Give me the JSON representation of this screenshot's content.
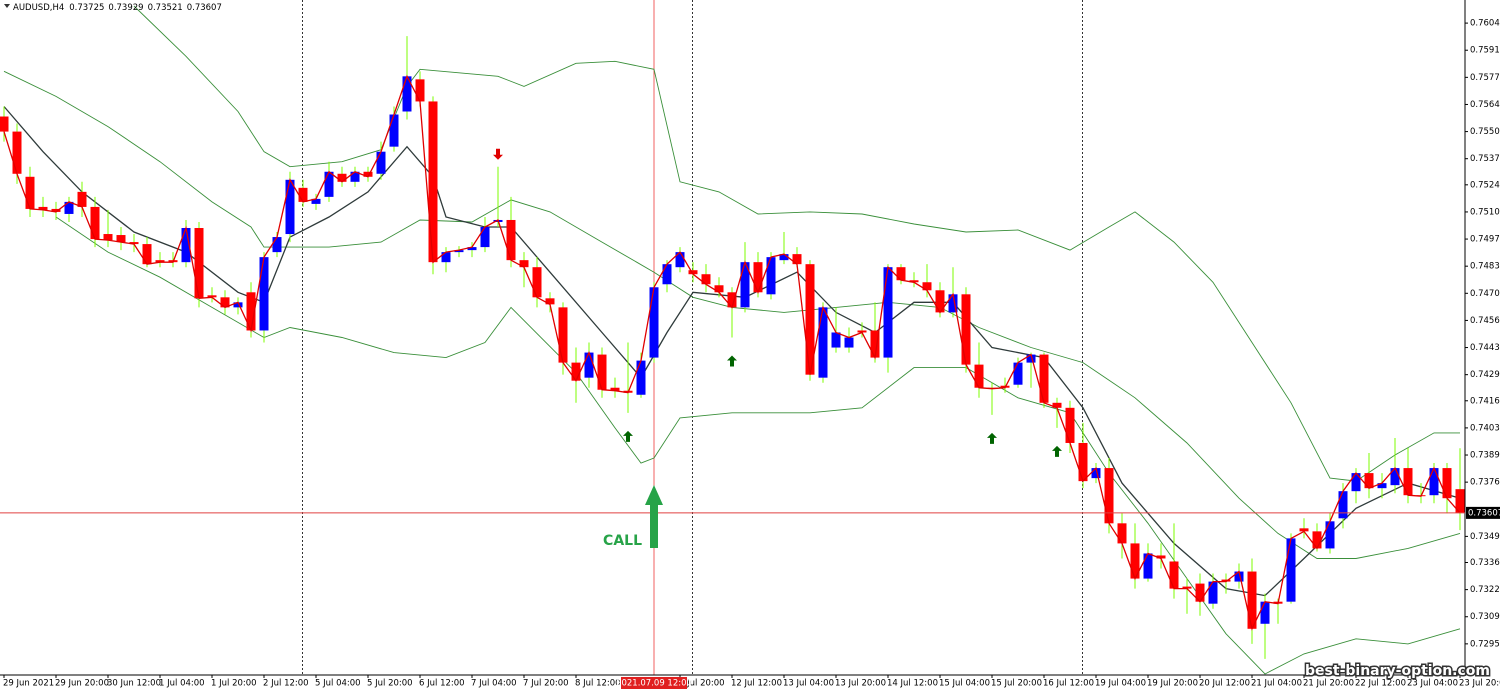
{
  "chart_data": {
    "type": "candlestick",
    "title": "AUDUSD,H4",
    "categories": [
      "29 Jun 2021",
      null,
      null,
      null,
      "29 Jun 20:00",
      null,
      null,
      null,
      "30 Jun 12:00",
      null,
      null,
      null,
      "1 Jul 04:00",
      null,
      null,
      null,
      "1 Jul 20:00",
      null,
      null,
      null,
      "2 Jul 12:00",
      null,
      null,
      null,
      "5 Jul 04:00",
      null,
      null,
      null,
      "5 Jul 20:00",
      null,
      null,
      null,
      "6 Jul 12:00",
      null,
      null,
      null,
      "7 Jul 04:00",
      null,
      null,
      null,
      "7 Jul 20:00",
      null,
      null,
      null,
      "8 Jul 12:00",
      null,
      null,
      null,
      null,
      null,
      null,
      null,
      "9 Jul 20:00",
      null,
      null,
      null,
      "12 Jul 12:00",
      null,
      null,
      null,
      "13 Jul 04:00",
      null,
      null,
      null,
      "13 Jul 20:00",
      null,
      null,
      null,
      "14 Jul 12:00",
      null,
      null,
      null,
      "15 Jul 04:00",
      null,
      null,
      null,
      "15 Jul 20:00",
      null,
      null,
      null,
      "16 Jul 12:00",
      null,
      null,
      null,
      "19 Jul 04:00",
      null,
      null,
      null,
      "19 Jul 20:00",
      null,
      null,
      null,
      "20 Jul 12:00",
      null,
      null,
      null,
      "21 Jul 04:00",
      null,
      null,
      null,
      "21 Jul 20:00",
      null,
      null,
      null,
      "22 Jul 12:00",
      null,
      null,
      null,
      "23 Jul 04:00",
      null,
      null,
      null,
      "23 Jul 20:00"
    ],
    "open": [
      0.7558,
      0.75505,
      0.7528,
      0.7513,
      0.7512,
      0.75095,
      0.75205,
      0.7513,
      0.74995,
      0.7499,
      0.74955,
      0.74945,
      0.74865,
      0.74865,
      0.74855,
      0.75025,
      0.7469,
      0.7468,
      0.7463,
      0.74705,
      0.74515,
      0.74905,
      0.74995,
      0.75225,
      0.75145,
      0.7518,
      0.75295,
      0.75255,
      0.75305,
      0.75295,
      0.7543,
      0.75605,
      0.75765,
      0.75655,
      0.74855,
      0.74905,
      0.74915,
      0.7493,
      0.75055,
      0.75065,
      0.74865,
      0.7483,
      0.74675,
      0.7463,
      0.74355,
      0.7428,
      0.74395,
      0.7423,
      0.74215,
      0.74195,
      0.7438,
      0.74745,
      0.7483,
      0.74815,
      0.74795,
      0.7474,
      0.74705,
      0.7463,
      0.74855,
      0.74695,
      0.74865,
      0.74895,
      0.74845,
      0.7428,
      0.7443,
      0.7443,
      0.74515,
      0.74515,
      0.7438,
      0.7483,
      0.74765,
      0.74755,
      0.74715,
      0.74605,
      0.74695,
      0.74345,
      0.7423,
      0.7424,
      0.74245,
      0.74355,
      0.74395,
      0.74155,
      0.7413,
      0.73955,
      0.7378,
      0.7383,
      0.73555,
      0.73455,
      0.7328,
      0.73395,
      0.73365,
      0.7324,
      0.73255,
      0.73155,
      0.73275,
      0.73265,
      0.73315,
      0.73055,
      0.73165,
      0.73165,
      0.7353,
      0.73515,
      0.7343,
      0.7358,
      0.73715,
      0.73805,
      0.7373,
      0.73745,
      0.7383,
      0.73695,
      0.73695,
      0.7383,
      0.73725
    ],
    "high": [
      0.7563,
      0.75545,
      0.7533,
      0.7518,
      0.75155,
      0.7518,
      0.75255,
      0.7518,
      0.75115,
      0.7503,
      0.74995,
      0.7498,
      0.74905,
      0.74905,
      0.75065,
      0.75055,
      0.7473,
      0.74715,
      0.7468,
      0.74755,
      0.74905,
      0.75005,
      0.75305,
      0.75265,
      0.75195,
      0.75355,
      0.7533,
      0.7533,
      0.7533,
      0.75455,
      0.7563,
      0.7598,
      0.75805,
      0.7568,
      0.7493,
      0.74935,
      0.74955,
      0.7508,
      0.7533,
      0.7518,
      0.74905,
      0.7488,
      0.74705,
      0.74655,
      0.7443,
      0.74455,
      0.7443,
      0.7428,
      0.74455,
      0.74405,
      0.74755,
      0.74865,
      0.7493,
      0.74855,
      0.74845,
      0.7478,
      0.7473,
      0.74955,
      0.74905,
      0.74905,
      0.75005,
      0.7493,
      0.74865,
      0.74655,
      0.7463,
      0.7453,
      0.74555,
      0.74655,
      0.74845,
      0.74845,
      0.74805,
      0.74845,
      0.74755,
      0.7483,
      0.7473,
      0.74455,
      0.74255,
      0.7428,
      0.7438,
      0.74405,
      0.74405,
      0.7418,
      0.74165,
      0.74055,
      0.73855,
      0.7388,
      0.73605,
      0.73555,
      0.73455,
      0.73455,
      0.73555,
      0.7328,
      0.73305,
      0.73305,
      0.73305,
      0.73355,
      0.7338,
      0.73205,
      0.7318,
      0.73505,
      0.7358,
      0.73555,
      0.73605,
      0.73755,
      0.7383,
      0.73905,
      0.73805,
      0.7398,
      0.7393,
      0.73755,
      0.73855,
      0.73855,
      0.73929
    ],
    "low": [
      0.75455,
      0.75245,
      0.7508,
      0.7508,
      0.75065,
      0.75055,
      0.7508,
      0.7493,
      0.7493,
      0.74915,
      0.74905,
      0.7483,
      0.7483,
      0.7483,
      0.7483,
      0.7463,
      0.74655,
      0.74595,
      0.74595,
      0.7448,
      0.74455,
      0.7488,
      0.74955,
      0.7513,
      0.75115,
      0.75155,
      0.7523,
      0.7523,
      0.75255,
      0.75265,
      0.75405,
      0.75565,
      0.7563,
      0.74795,
      0.74805,
      0.7488,
      0.7488,
      0.74905,
      0.7503,
      0.7483,
      0.7473,
      0.7463,
      0.74605,
      0.74295,
      0.74155,
      0.7423,
      0.7418,
      0.7418,
      0.74105,
      0.7418,
      0.74355,
      0.74705,
      0.74805,
      0.74755,
      0.74705,
      0.7468,
      0.7448,
      0.74605,
      0.7468,
      0.7467,
      0.74845,
      0.7483,
      0.74265,
      0.74255,
      0.74405,
      0.74405,
      0.7448,
      0.74355,
      0.74305,
      0.74745,
      0.7473,
      0.7468,
      0.7458,
      0.7458,
      0.74305,
      0.7418,
      0.74095,
      0.74205,
      0.7423,
      0.7423,
      0.7413,
      0.7403,
      0.73905,
      0.7373,
      0.73755,
      0.73505,
      0.7338,
      0.7323,
      0.73265,
      0.7333,
      0.7318,
      0.73105,
      0.73095,
      0.7313,
      0.73205,
      0.7323,
      0.72955,
      0.7288,
      0.73055,
      0.73155,
      0.7348,
      0.73415,
      0.73405,
      0.7353,
      0.73655,
      0.7368,
      0.7368,
      0.73705,
      0.73655,
      0.73655,
      0.73655,
      0.73605,
      0.73521
    ],
    "close": [
      0.75505,
      0.75295,
      0.7512,
      0.75115,
      0.75105,
      0.75155,
      0.7513,
      0.7497,
      0.74965,
      0.74955,
      0.74945,
      0.74845,
      0.74855,
      0.74855,
      0.75025,
      0.74675,
      0.7468,
      0.7463,
      0.74655,
      0.74515,
      0.7488,
      0.7498,
      0.75265,
      0.75155,
      0.7517,
      0.75305,
      0.75255,
      0.75305,
      0.7528,
      0.75405,
      0.7559,
      0.7578,
      0.75655,
      0.74855,
      0.74905,
      0.74915,
      0.7493,
      0.7503,
      0.75065,
      0.74865,
      0.7483,
      0.7468,
      0.74645,
      0.74355,
      0.74265,
      0.74405,
      0.7422,
      0.74215,
      0.74205,
      0.74365,
      0.7473,
      0.74845,
      0.74905,
      0.74795,
      0.74745,
      0.74705,
      0.7463,
      0.74855,
      0.74705,
      0.7488,
      0.74895,
      0.74845,
      0.74295,
      0.7463,
      0.74505,
      0.7448,
      0.74505,
      0.7438,
      0.7483,
      0.74765,
      0.74755,
      0.74715,
      0.74605,
      0.74695,
      0.74345,
      0.7423,
      0.74225,
      0.7423,
      0.74355,
      0.74395,
      0.74155,
      0.7413,
      0.73955,
      0.73765,
      0.7383,
      0.73555,
      0.73455,
      0.7328,
      0.73405,
      0.7338,
      0.7323,
      0.7323,
      0.73165,
      0.73265,
      0.73265,
      0.73315,
      0.7303,
      0.73165,
      0.73155,
      0.7348,
      0.73515,
      0.7343,
      0.73565,
      0.73715,
      0.73805,
      0.7373,
      0.73755,
      0.7383,
      0.73695,
      0.7369,
      0.7383,
      0.7368,
      0.73607
    ],
    "up_color": "#0000ff",
    "down_color": "#ff0000",
    "wick_color": "#7cfc00",
    "lines": [
      {
        "color": "#3a8f3a",
        "x": [
          10,
          14,
          18,
          20,
          22,
          26,
          29,
          31,
          32,
          38,
          40,
          44,
          47,
          50,
          52,
          55,
          58,
          62,
          66,
          70,
          74,
          78,
          82,
          85,
          87,
          90,
          93,
          96,
          99,
          102,
          104,
          107,
          110,
          112
        ],
        "values": [
          0.7613,
          0.7588,
          0.75605,
          0.75405,
          0.7533,
          0.75355,
          0.75415,
          0.7573,
          0.75815,
          0.7578,
          0.7573,
          0.75845,
          0.75855,
          0.75815,
          0.75255,
          0.75205,
          0.75095,
          0.75105,
          0.75095,
          0.75045,
          0.75005,
          0.75015,
          0.74915,
          0.7503,
          0.75105,
          0.74955,
          0.74755,
          0.74455,
          0.74155,
          0.7378,
          0.73765,
          0.73895,
          0.74005,
          0.74005
        ]
      },
      {
        "color": "#3a8f3a",
        "x": [
          0,
          4,
          8,
          12,
          16,
          19,
          20,
          25,
          29,
          32,
          36,
          39,
          42,
          46,
          50,
          53,
          56,
          60,
          64,
          68,
          72,
          75,
          79,
          83,
          87,
          91,
          95,
          98,
          101,
          104,
          108,
          112
        ],
        "values": [
          0.75805,
          0.7568,
          0.7553,
          0.75355,
          0.75155,
          0.7503,
          0.7493,
          0.7493,
          0.74955,
          0.75065,
          0.75055,
          0.75165,
          0.75105,
          0.74955,
          0.74805,
          0.7468,
          0.7463,
          0.74605,
          0.7463,
          0.74655,
          0.7463,
          0.7453,
          0.7443,
          0.74355,
          0.7418,
          0.73955,
          0.7368,
          0.73505,
          0.7338,
          0.7338,
          0.7343,
          0.73505
        ]
      },
      {
        "color": "#3a8f3a",
        "x": [
          4,
          8,
          12,
          16,
          20,
          22,
          26,
          30,
          34,
          37,
          39,
          44,
          47,
          49,
          50,
          52,
          56,
          62,
          66,
          70,
          74,
          78,
          82,
          85,
          88,
          91,
          94,
          97,
          100,
          104,
          108,
          112
        ],
        "values": [
          0.7508,
          0.74905,
          0.7478,
          0.7463,
          0.7448,
          0.7453,
          0.7448,
          0.74405,
          0.7438,
          0.74455,
          0.7463,
          0.74305,
          0.7403,
          0.73855,
          0.7388,
          0.7408,
          0.74105,
          0.74105,
          0.7413,
          0.7433,
          0.7433,
          0.7418,
          0.74105,
          0.73805,
          0.73555,
          0.7328,
          0.73005,
          0.72805,
          0.72905,
          0.7298,
          0.72955,
          0.7303
        ]
      },
      {
        "color": "#2f3b3b",
        "x": [
          0,
          3,
          6,
          10,
          14,
          18,
          20,
          22,
          25,
          28,
          31,
          33,
          34,
          37,
          39,
          42,
          46,
          49,
          51,
          53,
          57,
          61,
          64,
          67,
          70,
          73,
          76,
          80,
          83,
          86,
          90,
          94,
          97,
          100,
          104,
          108,
          112
        ],
        "values": [
          0.7563,
          0.75405,
          0.75205,
          0.75005,
          0.74905,
          0.74705,
          0.74655,
          0.7498,
          0.7508,
          0.75205,
          0.7543,
          0.7528,
          0.7508,
          0.7503,
          0.7503,
          0.74805,
          0.74505,
          0.7428,
          0.74505,
          0.74705,
          0.7468,
          0.74805,
          0.74605,
          0.74505,
          0.74655,
          0.74655,
          0.7443,
          0.7438,
          0.7413,
          0.73755,
          0.73455,
          0.7323,
          0.73195,
          0.7338,
          0.7363,
          0.73755,
          0.7368
        ]
      }
    ],
    "close_line_color": "#e00000",
    "ylim": [
      0.728,
      0.7616
    ],
    "yticks": [
      0.76045,
      {
        "value": 0.7591,
        "label": "0.75910"
      },
      0.75775,
      {
        "value": 0.7564,
        "label": "0.75640"
      },
      0.75505,
      {
        "value": 0.7537,
        "label": "0.75370"
      },
      {
        "value": 0.7524,
        "label": "0.75240"
      },
      0.75105,
      {
        "value": 0.7497,
        "label": "0.74970"
      },
      0.74835,
      {
        "value": 0.747,
        "label": "0.74700"
      },
      0.74565,
      {
        "value": 0.7443,
        "label": "0.74430"
      },
      0.74295,
      0.74165,
      {
        "value": 0.7403,
        "label": "0.74030"
      },
      0.73895,
      {
        "value": 0.7376,
        "label": "0.73760"
      },
      {
        "value": 0.7349,
        "label": "0.73490"
      },
      {
        "value": 0.7336,
        "label": "0.73360"
      },
      0.73225,
      {
        "value": 0.7309,
        "label": "0.73090"
      },
      0.72955
    ],
    "crosshair_label": "2021.07.09 12:00",
    "signal_label": "CALL",
    "watermark": "best-binary-option.com"
  }
}
